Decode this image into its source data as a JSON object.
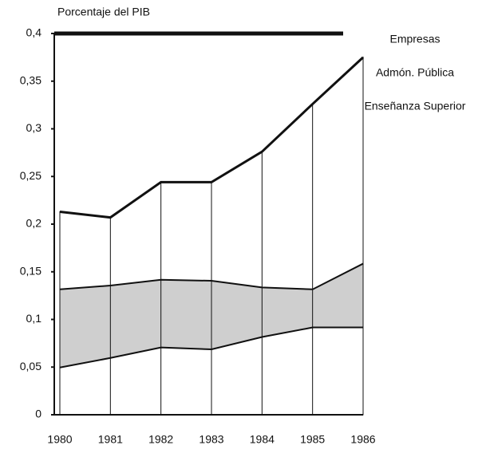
{
  "chart_data": {
    "type": "stacked_area",
    "y_label": "Porcentaje del PIB",
    "categories": [
      "1980",
      "1981",
      "1982",
      "1983",
      "1984",
      "1985",
      "1986"
    ],
    "series": [
      {
        "name": "Enseñanza Superior",
        "color": "#ffffff",
        "values": [
          0.05,
          0.06,
          0.071,
          0.069,
          0.082,
          0.092,
          0.092
        ]
      },
      {
        "name": "Admón. Pública",
        "color": "#cfcfcf",
        "values": [
          0.082,
          0.076,
          0.071,
          0.072,
          0.052,
          0.04,
          0.067
        ]
      },
      {
        "name": "Empresas",
        "color": "#ffffff",
        "values": [
          0.081,
          0.071,
          0.102,
          0.103,
          0.142,
          0.194,
          0.216
        ]
      }
    ],
    "ylim": [
      0,
      0.4
    ],
    "yticks": [
      {
        "value": 0,
        "label": "0"
      },
      {
        "value": 0.05,
        "label": "0,05"
      },
      {
        "value": 0.1,
        "label": "0,1"
      },
      {
        "value": 0.15,
        "label": "0,15"
      },
      {
        "value": 0.2,
        "label": "0,2"
      },
      {
        "value": 0.25,
        "label": "0,25"
      },
      {
        "value": 0.3,
        "label": "0,3"
      },
      {
        "value": 0.35,
        "label": "0,35"
      },
      {
        "value": 0.4,
        "label": "0,4"
      }
    ]
  }
}
